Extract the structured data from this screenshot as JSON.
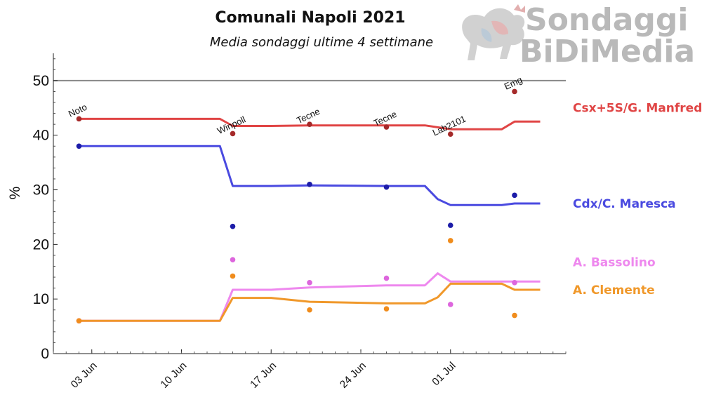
{
  "chart_data": {
    "type": "line",
    "title": "Comunali Napoli 2021",
    "subtitle": "Media sondaggi ultime 4 settimane",
    "ylabel": "%",
    "xlabel": "",
    "ylim": [
      0,
      55
    ],
    "yticks": [
      0,
      10,
      20,
      30,
      40,
      50
    ],
    "xlim": [
      "2021-05-31",
      "2021-07-10"
    ],
    "xticks": [
      {
        "date": "2021-06-03",
        "label": "03 Jun"
      },
      {
        "date": "2021-06-10",
        "label": "10 Jun"
      },
      {
        "date": "2021-06-17",
        "label": "17 Jun"
      },
      {
        "date": "2021-06-24",
        "label": "24 Jun"
      },
      {
        "date": "2021-07-01",
        "label": "01 Jul"
      }
    ],
    "reference_line": 50,
    "grid": false,
    "logo": {
      "line1": "Sondaggi",
      "line2": "BiDiMedia"
    },
    "polls": [
      {
        "label": "Noto",
        "date": "2021-06-02"
      },
      {
        "label": "Winpoll",
        "date": "2021-06-14"
      },
      {
        "label": "Tecne",
        "date": "2021-06-20"
      },
      {
        "label": "Tecne",
        "date": "2021-06-26"
      },
      {
        "label": "Lab2101",
        "date": "2021-07-01"
      },
      {
        "label": "Emg",
        "date": "2021-07-06"
      }
    ],
    "series": [
      {
        "name": "Csx+5S/G. Manfredi",
        "color": "#e04545",
        "point_color": "#a52a2a",
        "line": [
          [
            "2021-06-02",
            43.0
          ],
          [
            "2021-06-13",
            43.0
          ],
          [
            "2021-06-14",
            41.7
          ],
          [
            "2021-06-17",
            41.7
          ],
          [
            "2021-06-20",
            41.8
          ],
          [
            "2021-06-26",
            41.8
          ],
          [
            "2021-06-29",
            41.8
          ],
          [
            "2021-07-01",
            41.1
          ],
          [
            "2021-07-05",
            41.1
          ],
          [
            "2021-07-06",
            42.5
          ],
          [
            "2021-07-08",
            42.5
          ]
        ],
        "points": [
          [
            "2021-06-02",
            43.0
          ],
          [
            "2021-06-14",
            40.3
          ],
          [
            "2021-06-20",
            42.0
          ],
          [
            "2021-06-26",
            41.5
          ],
          [
            "2021-07-01",
            40.2
          ],
          [
            "2021-07-06",
            48.0
          ]
        ]
      },
      {
        "name": "Cdx/C. Maresca",
        "color": "#4a4ae0",
        "point_color": "#1c1ca8",
        "line": [
          [
            "2021-06-02",
            38.0
          ],
          [
            "2021-06-13",
            38.0
          ],
          [
            "2021-06-14",
            30.7
          ],
          [
            "2021-06-17",
            30.7
          ],
          [
            "2021-06-20",
            30.8
          ],
          [
            "2021-06-26",
            30.7
          ],
          [
            "2021-06-29",
            30.7
          ],
          [
            "2021-06-30",
            28.3
          ],
          [
            "2021-07-01",
            27.2
          ],
          [
            "2021-07-05",
            27.2
          ],
          [
            "2021-07-06",
            27.5
          ],
          [
            "2021-07-08",
            27.5
          ]
        ],
        "points": [
          [
            "2021-06-02",
            38.0
          ],
          [
            "2021-06-14",
            23.3
          ],
          [
            "2021-06-20",
            31.0
          ],
          [
            "2021-06-26",
            30.5
          ],
          [
            "2021-07-01",
            23.5
          ],
          [
            "2021-07-06",
            29.0
          ]
        ]
      },
      {
        "name": "A. Bassolino",
        "color": "#ee88ee",
        "point_color": "#dd66dd",
        "line": [
          [
            "2021-06-02",
            6.0
          ],
          [
            "2021-06-13",
            6.0
          ],
          [
            "2021-06-14",
            11.7
          ],
          [
            "2021-06-17",
            11.7
          ],
          [
            "2021-06-20",
            12.1
          ],
          [
            "2021-06-26",
            12.5
          ],
          [
            "2021-06-29",
            12.5
          ],
          [
            "2021-06-30",
            14.7
          ],
          [
            "2021-07-01",
            13.2
          ],
          [
            "2021-07-05",
            13.2
          ],
          [
            "2021-07-06",
            13.2
          ],
          [
            "2021-07-08",
            13.2
          ]
        ],
        "points": [
          [
            "2021-06-02",
            6.0
          ],
          [
            "2021-06-14",
            17.2
          ],
          [
            "2021-06-20",
            13.0
          ],
          [
            "2021-06-26",
            13.8
          ],
          [
            "2021-07-01",
            9.0
          ],
          [
            "2021-07-06",
            13.0
          ]
        ]
      },
      {
        "name": "A. Clemente",
        "color": "#f0982a",
        "point_color": "#f08c1c",
        "line": [
          [
            "2021-06-02",
            6.0
          ],
          [
            "2021-06-13",
            6.0
          ],
          [
            "2021-06-14",
            10.2
          ],
          [
            "2021-06-17",
            10.2
          ],
          [
            "2021-06-20",
            9.5
          ],
          [
            "2021-06-26",
            9.2
          ],
          [
            "2021-06-29",
            9.2
          ],
          [
            "2021-06-30",
            10.3
          ],
          [
            "2021-07-01",
            12.8
          ],
          [
            "2021-07-05",
            12.8
          ],
          [
            "2021-07-06",
            11.7
          ],
          [
            "2021-07-08",
            11.7
          ]
        ],
        "points": [
          [
            "2021-06-02",
            6.0
          ],
          [
            "2021-06-14",
            14.2
          ],
          [
            "2021-06-20",
            8.0
          ],
          [
            "2021-06-26",
            8.2
          ],
          [
            "2021-07-01",
            20.7
          ],
          [
            "2021-07-06",
            7.0
          ]
        ]
      }
    ]
  }
}
